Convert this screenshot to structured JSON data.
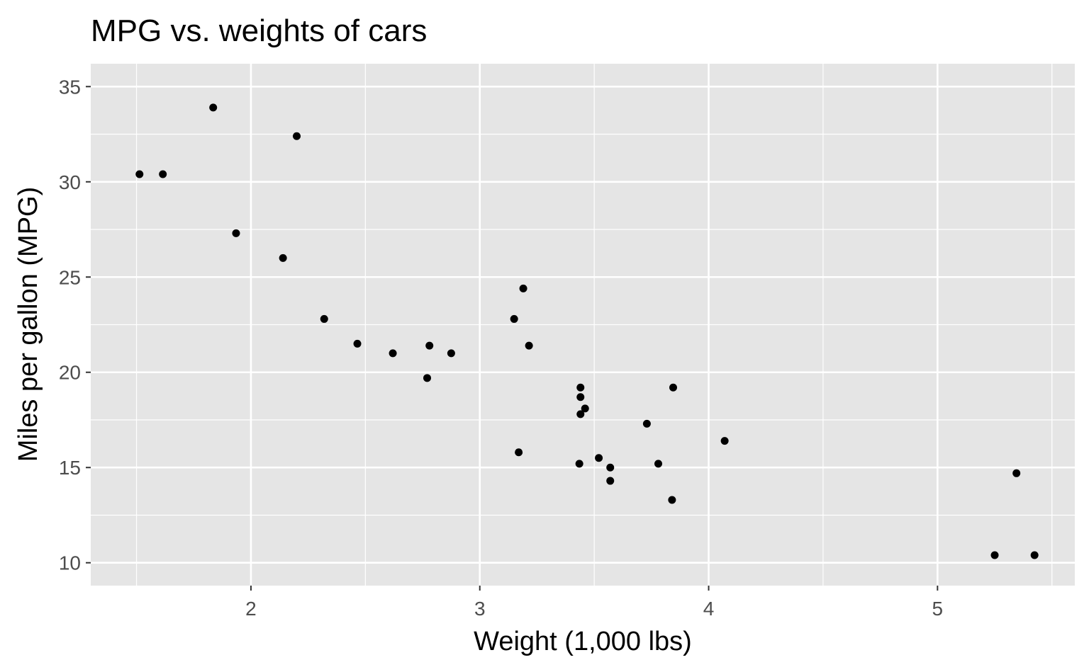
{
  "chart_data": {
    "type": "scatter",
    "title": "MPG vs. weights of cars",
    "xlabel": "Weight (1,000 lbs)",
    "ylabel": "Miles per gallon (MPG)",
    "xlim": [
      1.3,
      5.6
    ],
    "ylim": [
      8.8,
      36.2
    ],
    "xticks": [
      2,
      3,
      4,
      5
    ],
    "yticks": [
      10,
      15,
      20,
      25,
      30,
      35
    ],
    "x_minor": [
      1.5,
      2.5,
      3.5,
      4.5,
      5.5
    ],
    "y_minor": [
      12.5,
      17.5,
      22.5,
      27.5,
      32.5
    ],
    "grid": true,
    "colors": {
      "panel": "#e5e5e5",
      "grid": "#ffffff",
      "point": "#000000"
    },
    "points": [
      {
        "x": 2.62,
        "y": 21.0
      },
      {
        "x": 2.875,
        "y": 21.0
      },
      {
        "x": 2.32,
        "y": 22.8
      },
      {
        "x": 3.215,
        "y": 21.4
      },
      {
        "x": 3.44,
        "y": 18.7
      },
      {
        "x": 3.46,
        "y": 18.1
      },
      {
        "x": 3.57,
        "y": 14.3
      },
      {
        "x": 3.19,
        "y": 24.4
      },
      {
        "x": 3.15,
        "y": 22.8
      },
      {
        "x": 3.44,
        "y": 19.2
      },
      {
        "x": 3.44,
        "y": 17.8
      },
      {
        "x": 4.07,
        "y": 16.4
      },
      {
        "x": 3.73,
        "y": 17.3
      },
      {
        "x": 3.78,
        "y": 15.2
      },
      {
        "x": 5.25,
        "y": 10.4
      },
      {
        "x": 5.424,
        "y": 10.4
      },
      {
        "x": 5.345,
        "y": 14.7
      },
      {
        "x": 2.2,
        "y": 32.4
      },
      {
        "x": 1.615,
        "y": 30.4
      },
      {
        "x": 1.835,
        "y": 33.9
      },
      {
        "x": 2.465,
        "y": 21.5
      },
      {
        "x": 3.52,
        "y": 15.5
      },
      {
        "x": 3.435,
        "y": 15.2
      },
      {
        "x": 3.84,
        "y": 13.3
      },
      {
        "x": 3.845,
        "y": 19.2
      },
      {
        "x": 1.935,
        "y": 27.3
      },
      {
        "x": 2.14,
        "y": 26.0
      },
      {
        "x": 1.513,
        "y": 30.4
      },
      {
        "x": 3.17,
        "y": 15.8
      },
      {
        "x": 2.77,
        "y": 19.7
      },
      {
        "x": 3.57,
        "y": 15.0
      },
      {
        "x": 2.78,
        "y": 21.4
      }
    ]
  }
}
